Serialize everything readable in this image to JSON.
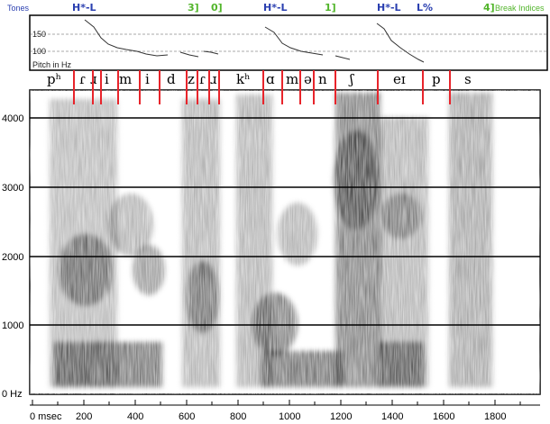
{
  "tiers": {
    "tones_label": "Tones",
    "break_label": "Break Indices",
    "tone_color": "#2a3fb0",
    "break_color": "#52b52b",
    "tones": [
      {
        "id": "t1",
        "text": "H*-L"
      },
      {
        "id": "t2",
        "text": "H*-L"
      },
      {
        "id": "t3",
        "text": "H*-L"
      },
      {
        "id": "t4",
        "text": "L%"
      }
    ],
    "breaks": [
      {
        "id": "b1",
        "text": "3]"
      },
      {
        "id": "b2",
        "text": "0]"
      },
      {
        "id": "b3",
        "text": "1]"
      },
      {
        "id": "b4",
        "text": "4]"
      }
    ]
  },
  "pitch": {
    "label": "Pitch in Hz",
    "ticks": [
      "150",
      "100"
    ]
  },
  "segments": [
    "pʰ",
    "ɾ",
    "ɹ",
    "i",
    "m",
    "i",
    "d",
    "z",
    "ɾ",
    "ɹ",
    "kʰ",
    "ɑ",
    "m",
    "ə",
    "n",
    "ʃ",
    "eɪ",
    "p",
    "s"
  ],
  "boundary_color": "#e8242b",
  "spectrogram": {
    "freq_ticks": [
      "4000",
      "3000",
      "2000",
      "1000",
      "0 Hz"
    ]
  },
  "time_axis": {
    "ticks": [
      "0 msec",
      "200",
      "400",
      "600",
      "800",
      "1000",
      "1200",
      "1400",
      "1600",
      "1800"
    ]
  }
}
